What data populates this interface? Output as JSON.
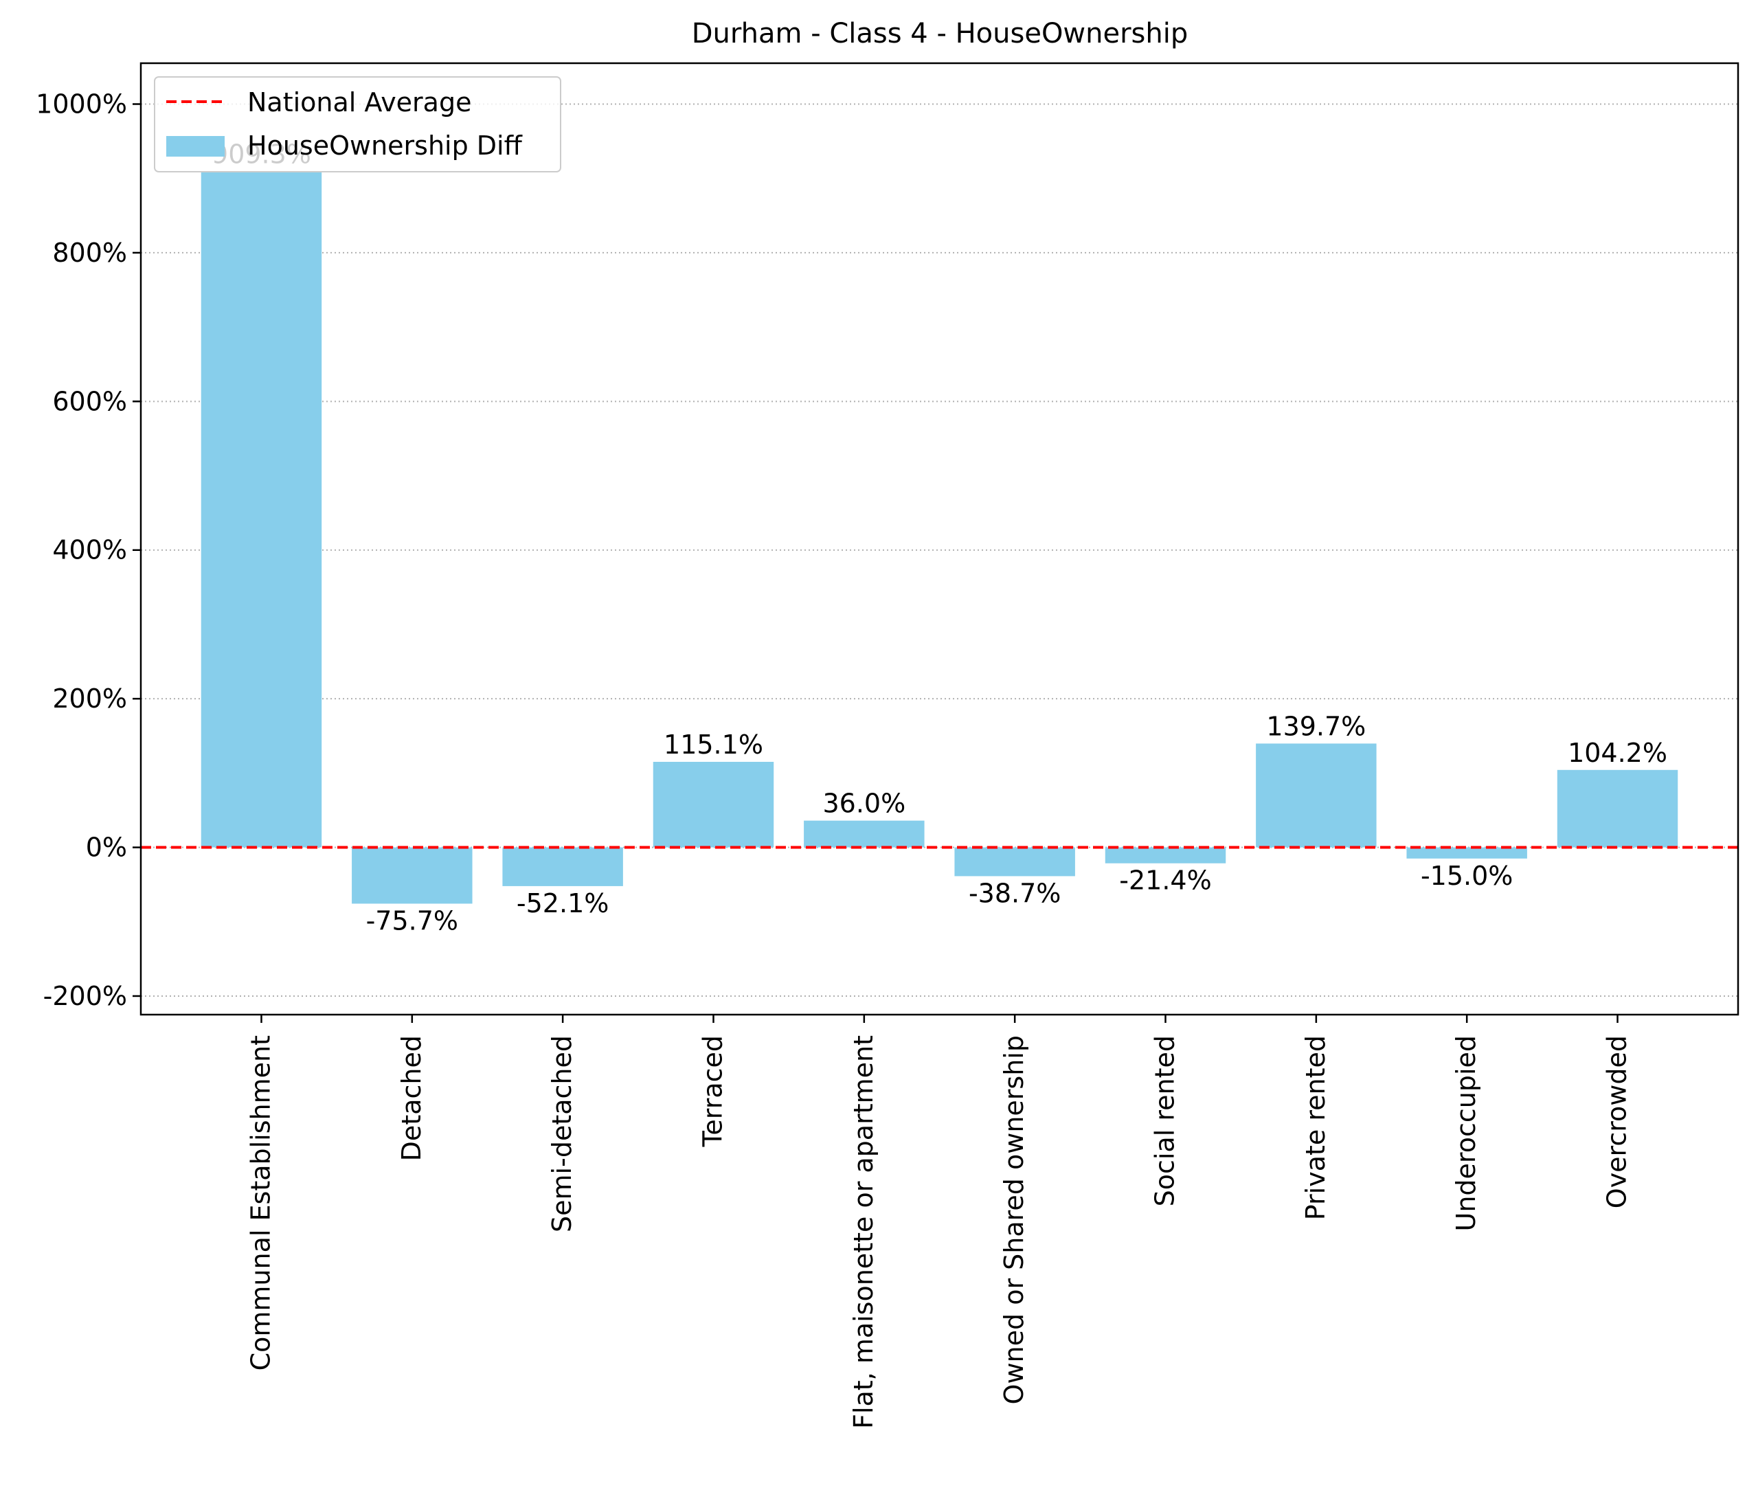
{
  "chart_data": {
    "type": "bar",
    "title": "Durham - Class 4 - HouseOwnership",
    "xlabel": "",
    "ylabel": "",
    "categories": [
      "Communal Establishment",
      "Detached",
      "Semi-detached",
      "Terraced",
      "Flat, maisonette or apartment",
      "Owned or Shared ownership",
      "Social rented",
      "Private rented",
      "Underoccupied",
      "Overcrowded"
    ],
    "series": [
      {
        "name": "HouseOwnership Diff",
        "values": [
          909.3,
          -75.7,
          -52.1,
          115.1,
          36.0,
          -38.7,
          -21.4,
          139.7,
          -15.0,
          104.2
        ],
        "labels": [
          "909.3%",
          "-75.7%",
          "-52.1%",
          "115.1%",
          "36.0%",
          "-38.7%",
          "-21.4%",
          "139.7%",
          "-15.0%",
          "104.2%"
        ],
        "color": "#87ceeb"
      }
    ],
    "reference_line": {
      "name": "National Average",
      "value": 0,
      "color": "#ff0000",
      "style": "dashed"
    },
    "ylim": [
      -225,
      1055
    ],
    "yticks": [
      -200,
      0,
      200,
      400,
      600,
      800,
      1000
    ],
    "ytick_labels": [
      "-200%",
      "0%",
      "200%",
      "400%",
      "600%",
      "800%",
      "1000%"
    ],
    "grid": "y-dotted",
    "legend_position": "top-left",
    "legend": [
      "National Average",
      "HouseOwnership Diff"
    ]
  }
}
